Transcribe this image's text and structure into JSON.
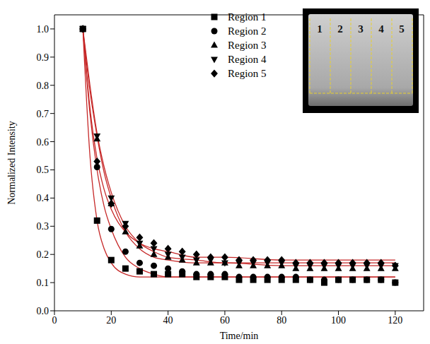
{
  "chart_data": {
    "type": "scatter",
    "x_label": "Time/min",
    "y_label": "Normalized Intensity",
    "xlim": [
      0,
      130
    ],
    "xticks": [
      0,
      20,
      40,
      60,
      80,
      100,
      120
    ],
    "ylim": [
      0,
      1.05
    ],
    "yticks": [
      {
        "value": 0,
        "label": "0.0"
      },
      {
        "value": 0.1,
        "label": "0.1"
      },
      {
        "value": 0.2,
        "label": "0.2"
      },
      {
        "value": 0.3,
        "label": "0.3"
      },
      {
        "value": 0.4,
        "label": "0.4"
      },
      {
        "value": 0.5,
        "label": "0.5"
      },
      {
        "value": 0.6,
        "label": "0.6"
      },
      {
        "value": 0.7,
        "label": "0.7"
      },
      {
        "value": 0.8,
        "label": "0.8"
      },
      {
        "value": 0.9,
        "label": "0.9"
      },
      {
        "value": 1,
        "label": "1.0"
      }
    ],
    "grid": false,
    "legend": "top",
    "annotations": [
      "1",
      "2",
      "3",
      "4",
      "5"
    ],
    "x": [
      10,
      15,
      20,
      25,
      30,
      35,
      40,
      45,
      50,
      55,
      60,
      65,
      70,
      75,
      80,
      85,
      90,
      95,
      100,
      105,
      110,
      115,
      120
    ],
    "series": [
      {
        "name": "Region 1",
        "color": "#000000",
        "marker": "square",
        "values": [
          1.0,
          0.32,
          0.18,
          0.15,
          0.14,
          0.13,
          0.13,
          0.13,
          0.12,
          0.12,
          0.12,
          0.11,
          0.11,
          0.11,
          0.11,
          0.11,
          0.11,
          0.1,
          0.11,
          0.11,
          0.11,
          0.11,
          0.1
        ]
      },
      {
        "name": "Region 2",
        "color": "#000000",
        "marker": "circle",
        "values": [
          1.0,
          0.51,
          0.29,
          0.21,
          0.17,
          0.16,
          0.15,
          0.14,
          0.13,
          0.13,
          0.13,
          0.12,
          0.12,
          0.12,
          0.12,
          0.12,
          0.11,
          0.11,
          0.11,
          0.11,
          0.11,
          0.11,
          0.1
        ]
      },
      {
        "name": "Region 3",
        "color": "#000000",
        "marker": "triangle",
        "values": [
          1.0,
          0.61,
          0.38,
          0.28,
          0.23,
          0.2,
          0.19,
          0.18,
          0.17,
          0.17,
          0.17,
          0.16,
          0.16,
          0.16,
          0.16,
          0.15,
          0.15,
          0.15,
          0.15,
          0.15,
          0.15,
          0.15,
          0.15
        ]
      },
      {
        "name": "Region 4",
        "color": "#000000",
        "marker": "triangle-down",
        "values": [
          1.0,
          0.62,
          0.4,
          0.31,
          0.24,
          0.22,
          0.2,
          0.19,
          0.18,
          0.18,
          0.17,
          0.17,
          0.17,
          0.17,
          0.17,
          0.16,
          0.16,
          0.16,
          0.16,
          0.16,
          0.16,
          0.16,
          0.16
        ]
      },
      {
        "name": "Region 5",
        "color": "#000000",
        "marker": "diamond",
        "values": [
          1.0,
          0.53,
          0.38,
          0.3,
          0.26,
          0.24,
          0.22,
          0.21,
          0.2,
          0.19,
          0.19,
          0.18,
          0.18,
          0.18,
          0.18,
          0.17,
          0.17,
          0.17,
          0.17,
          0.17,
          0.17,
          0.17,
          0.16
        ]
      }
    ],
    "fits": {
      "type": "line",
      "color": "#c62828",
      "x": [
        10,
        12.5,
        15,
        17.5,
        20,
        25,
        30,
        35,
        40,
        50,
        60,
        80,
        100,
        120
      ],
      "series": [
        {
          "values": [
            1.0,
            0.55,
            0.32,
            0.22,
            0.17,
            0.13,
            0.12,
            0.12,
            0.12,
            0.12,
            0.12,
            0.12,
            0.12,
            0.12
          ]
        },
        {
          "values": [
            1.0,
            0.7,
            0.5,
            0.37,
            0.29,
            0.19,
            0.15,
            0.13,
            0.12,
            0.12,
            0.12,
            0.12,
            0.12,
            0.12
          ]
        },
        {
          "values": [
            1.0,
            0.78,
            0.62,
            0.49,
            0.4,
            0.28,
            0.22,
            0.19,
            0.18,
            0.17,
            0.17,
            0.16,
            0.16,
            0.16
          ]
        },
        {
          "values": [
            1.0,
            0.8,
            0.63,
            0.51,
            0.42,
            0.3,
            0.24,
            0.21,
            0.19,
            0.18,
            0.17,
            0.17,
            0.17,
            0.17
          ]
        },
        {
          "values": [
            1.0,
            0.72,
            0.54,
            0.43,
            0.36,
            0.28,
            0.24,
            0.22,
            0.21,
            0.19,
            0.19,
            0.18,
            0.18,
            0.18
          ]
        }
      ]
    }
  }
}
